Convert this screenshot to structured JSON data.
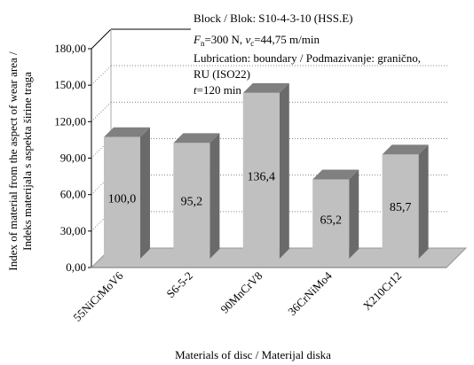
{
  "chart_data": {
    "type": "bar",
    "title": "",
    "annotation_lines": [
      "Block / Blok: S10-4-3-10 (HSS.E)",
      "F_n=300 N, v_c=44,75 m/min",
      "Lubrication: boundary / Podmazivanje: granično,",
      "RU (ISO22)",
      "t=120 min"
    ],
    "annotations": {
      "block": "Block / Blok: S10-4-3-10 (HSS.E)",
      "load_symbol": "F",
      "load_subscript": "n",
      "load_value": "=300 N, ",
      "speed_symbol": "v",
      "speed_subscript": "c",
      "speed_value": "=44,75 m/min",
      "lubrication_1": "Lubrication: boundary / Podmazivanje: granično,",
      "lubrication_2": "RU (ISO22)",
      "time_symbol": "t",
      "time_value": "=120 min"
    },
    "ylabel_line1": "Index of material from the aspect of wear area /",
    "ylabel_line2": "Indeks materijala s aspekta širine traga",
    "xlabel": "Materials of disc / Materijal diska",
    "categories": [
      "55NiCrMoV6",
      "S6-5-2",
      "90MnCrV8",
      "36CrNiMo4",
      "X210Cr12"
    ],
    "values": [
      100.0,
      95.2,
      136.4,
      65.2,
      85.7
    ],
    "value_labels": [
      "100,0",
      "95,2",
      "136,4",
      "65,2",
      "85,7"
    ],
    "ylim": [
      0,
      180
    ],
    "yticks": [
      "0,00",
      "30,00",
      "60,00",
      "90,00",
      "120,00",
      "150,00",
      "180,00"
    ],
    "grid": true,
    "bar_front_color": "#c0c0c0",
    "bar_top_color": "#808080",
    "bar_side_color": "#6a6a6a",
    "floor_color": "#c0c0c0"
  }
}
